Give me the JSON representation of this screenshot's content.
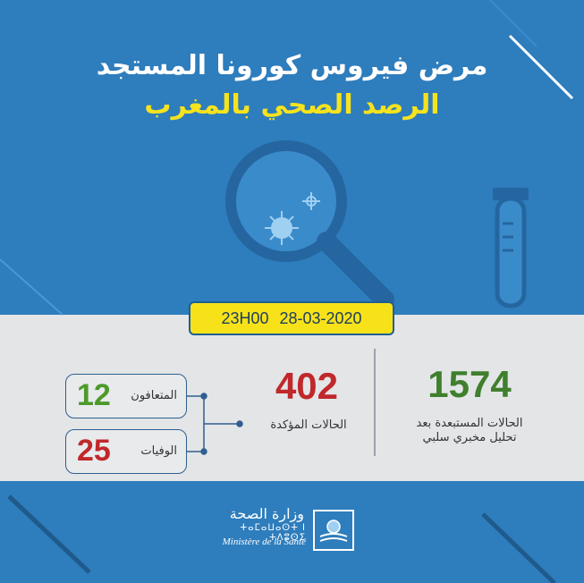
{
  "header": {
    "title_line1": "مرض فيروس كورونا المستجد",
    "title_line2": "الرصد الصحي بالمغرب"
  },
  "date_box": {
    "date": "28-03-2020",
    "time": "23H00"
  },
  "stats": {
    "excluded": {
      "value": "1574",
      "label_line1": "الحالات المستبعدة بعد",
      "label_line2": "تحليل مخبري سلبي"
    },
    "confirmed": {
      "value": "402",
      "label": "الحالات المؤكدة"
    },
    "recovered": {
      "value": "12",
      "label": "المتعافون"
    },
    "deaths": {
      "value": "25",
      "label": "الوفيات"
    }
  },
  "footer": {
    "ministry_ar": "وزارة الصحة",
    "ministry_tifinagh": "ⵜⴰⵎⴰⵡⴰⵙⵜ ⵏ ⵜⴷⵓⵙⵉ",
    "ministry_fr": "Ministère de la Santé"
  },
  "colors": {
    "background_blue": "#2e7dbd",
    "title_yellow": "#f6e31d",
    "green": "#3f7f2d",
    "red": "#c0282b",
    "panel_grey": "#e3e5e7"
  },
  "icons": [
    "magnifier-icon",
    "virus-icon",
    "test-tube-icon",
    "ministry-emblem-icon"
  ]
}
